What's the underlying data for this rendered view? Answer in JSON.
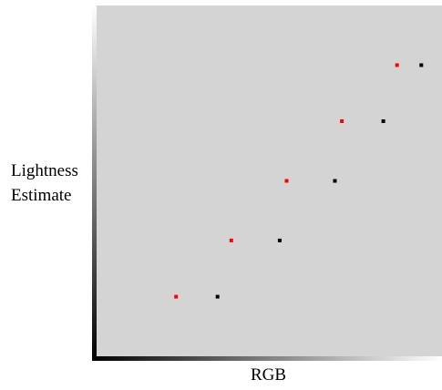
{
  "chart_data": {
    "type": "scatter",
    "title": "",
    "xlabel": "RGB",
    "ylabel_lines": [
      "Lightness",
      "Estimate"
    ],
    "xlim": [
      0,
      1
    ],
    "ylim": [
      0,
      1
    ],
    "grid": false,
    "legend": "none",
    "plot_background": "#d4d4d4",
    "axis_gradient": [
      "#000000",
      "#ffffff"
    ],
    "series": [
      {
        "color": "#ff0000",
        "x": [
          0.23,
          0.39,
          0.55,
          0.71,
          0.87
        ],
        "y": [
          0.17,
          0.33,
          0.5,
          0.67,
          0.83
        ]
      },
      {
        "color": "#000000",
        "x": [
          0.35,
          0.53,
          0.69,
          0.83,
          0.94
        ],
        "y": [
          0.17,
          0.33,
          0.5,
          0.67,
          0.83
        ]
      }
    ]
  }
}
